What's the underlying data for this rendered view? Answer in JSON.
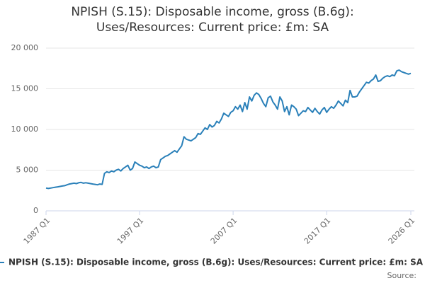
{
  "chart_data": {
    "type": "line",
    "title": "NPISH (S.15): Disposable income, gross (B.6g): Uses/Resources: Current price: £m: SA",
    "source_label": "Source:",
    "grid": true,
    "ylim": [
      0,
      20000
    ],
    "yticks": [
      0,
      {
        "value": 5000,
        "label": "5 000"
      },
      {
        "value": 10000,
        "label": "10 000"
      },
      {
        "value": 15000,
        "label": "15 000"
      },
      {
        "value": 20000,
        "label": "20 000"
      }
    ],
    "categories": [
      "1987 Q1",
      null,
      null,
      null,
      null,
      null,
      null,
      null,
      null,
      null,
      null,
      null,
      null,
      null,
      null,
      null,
      null,
      null,
      null,
      null,
      null,
      null,
      null,
      null,
      null,
      null,
      null,
      null,
      null,
      null,
      null,
      null,
      null,
      null,
      null,
      null,
      null,
      null,
      null,
      null,
      "1997 Q1",
      null,
      null,
      null,
      null,
      null,
      null,
      null,
      null,
      null,
      null,
      null,
      null,
      null,
      null,
      null,
      null,
      null,
      null,
      null,
      null,
      null,
      null,
      null,
      null,
      null,
      null,
      null,
      null,
      null,
      null,
      null,
      null,
      null,
      null,
      null,
      null,
      null,
      null,
      null,
      "2007 Q1",
      null,
      null,
      null,
      null,
      null,
      null,
      null,
      null,
      null,
      null,
      null,
      null,
      null,
      null,
      null,
      null,
      null,
      null,
      null,
      null,
      null,
      null,
      null,
      null,
      null,
      null,
      null,
      null,
      null,
      null,
      null,
      null,
      null,
      null,
      null,
      null,
      null,
      null,
      null,
      "2017 Q1",
      null,
      null,
      null,
      null,
      null,
      null,
      null,
      null,
      null,
      null,
      null,
      null,
      null,
      null,
      null,
      null,
      null,
      null,
      null,
      null,
      null,
      null,
      null,
      null,
      null,
      null,
      null,
      null,
      null,
      null,
      null,
      null,
      null,
      null,
      null,
      "2026 Q1"
    ],
    "series": [
      {
        "name": "NPISH (S.15): Disposable income, gross (B.6g): Uses/Resources: Current price: £m: SA",
        "color": "#2a80b9",
        "values": [
          2800,
          2750,
          2800,
          2850,
          2900,
          2950,
          3000,
          3050,
          3100,
          3200,
          3300,
          3350,
          3400,
          3350,
          3450,
          3500,
          3400,
          3450,
          3400,
          3350,
          3300,
          3250,
          3200,
          3300,
          3250,
          4600,
          4800,
          4700,
          4900,
          4800,
          5000,
          5100,
          4900,
          5200,
          5400,
          5600,
          5000,
          5200,
          6000,
          5800,
          5600,
          5500,
          5300,
          5400,
          5200,
          5400,
          5500,
          5300,
          5400,
          6300,
          6500,
          6700,
          6800,
          7000,
          7200,
          7400,
          7200,
          7600,
          8000,
          9100,
          8800,
          8700,
          8600,
          8800,
          9000,
          9500,
          9400,
          9800,
          10200,
          10000,
          10600,
          10300,
          10500,
          11000,
          10800,
          11300,
          12000,
          11800,
          11600,
          12100,
          12300,
          12800,
          12500,
          13000,
          12200,
          13300,
          12500,
          14000,
          13500,
          14200,
          14500,
          14300,
          13800,
          13200,
          12800,
          13900,
          14100,
          13400,
          13000,
          12500,
          14000,
          13500,
          12200,
          12800,
          11800,
          13000,
          12800,
          12500,
          11700,
          12000,
          12300,
          12200,
          12700,
          12400,
          12100,
          12600,
          12200,
          11900,
          12400,
          12700,
          12100,
          12500,
          12800,
          12600,
          13000,
          13500,
          13200,
          12900,
          13600,
          13300,
          14800,
          14000,
          14000,
          14100,
          14600,
          15000,
          15400,
          15800,
          15700,
          16000,
          16200,
          16700,
          15900,
          16000,
          16300,
          16500,
          16600,
          16500,
          16700,
          16600,
          17200,
          17300,
          17100,
          17000,
          16900,
          16800,
          16900
        ]
      }
    ]
  }
}
